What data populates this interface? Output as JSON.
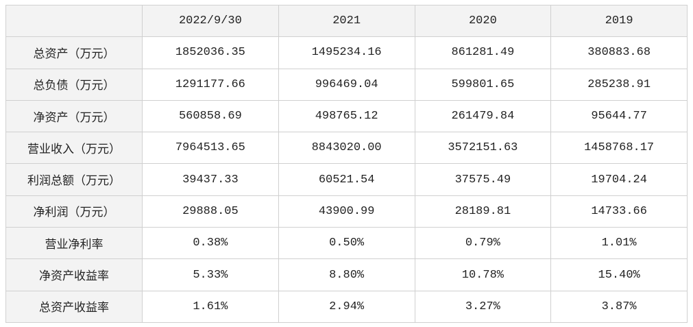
{
  "table": {
    "columns": [
      "2022/9/30",
      "2021",
      "2020",
      "2019"
    ],
    "rows": [
      [
        "总资产（万元）",
        "1852036.35",
        "1495234.16",
        "861281.49",
        "380883.68"
      ],
      [
        "总负债（万元）",
        "1291177.66",
        "996469.04",
        "599801.65",
        "285238.91"
      ],
      [
        "净资产（万元）",
        "560858.69",
        "498765.12",
        "261479.84",
        "95644.77"
      ],
      [
        "营业收入（万元）",
        "7964513.65",
        "8843020.00",
        "3572151.63",
        "1458768.17"
      ],
      [
        "利润总额（万元）",
        "39437.33",
        "60521.54",
        "37575.49",
        "19704.24"
      ],
      [
        "净利润（万元）",
        "29888.05",
        "43900.99",
        "28189.81",
        "14733.66"
      ],
      [
        "营业净利率",
        "0.38%",
        "0.50%",
        "0.79%",
        "1.01%"
      ],
      [
        "净资产收益率",
        "5.33%",
        "8.80%",
        "10.78%",
        "15.40%"
      ],
      [
        "总资产收益率",
        "1.61%",
        "2.94%",
        "3.27%",
        "3.87%"
      ]
    ]
  }
}
